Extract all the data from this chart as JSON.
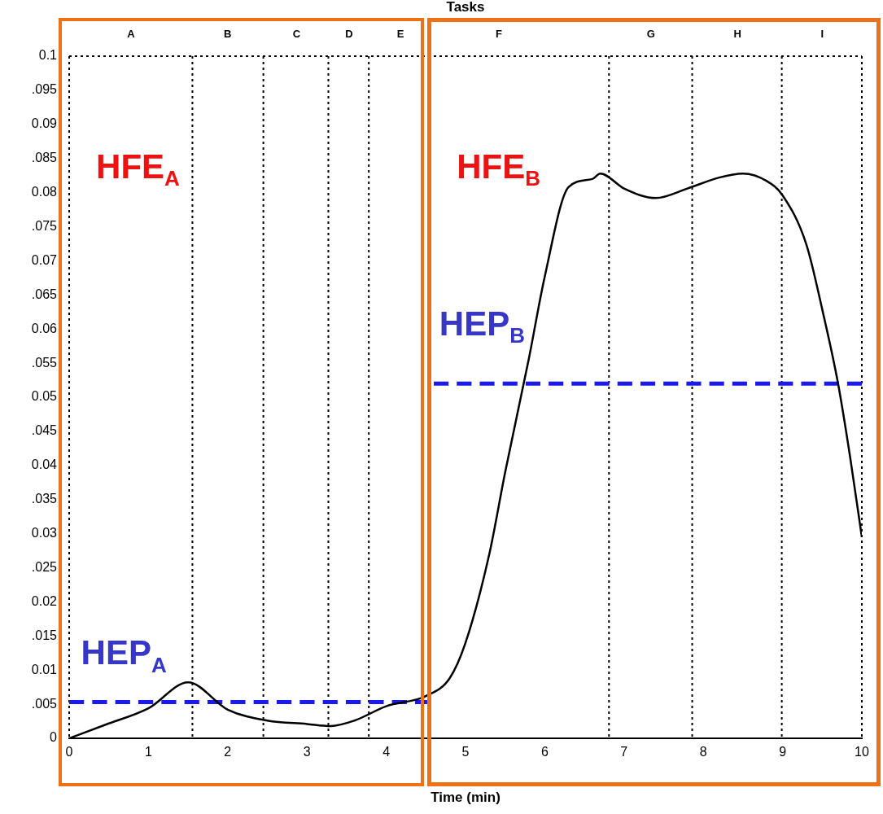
{
  "chart_data": {
    "type": "line",
    "xlabel": "Time (min)",
    "x2label": "Tasks",
    "xlim": [
      0,
      10
    ],
    "xticks": [
      0,
      1,
      2,
      3,
      4,
      5,
      6,
      7,
      8,
      9,
      10
    ],
    "ylim": [
      0,
      0.1
    ],
    "yticks": [
      0,
      {
        "value": 0.005,
        "label": ".005"
      },
      0.01,
      {
        "value": 0.015,
        "label": ".015"
      },
      0.02,
      {
        "value": 0.025,
        "label": ".025"
      },
      0.03,
      {
        "value": 0.035,
        "label": ".035"
      },
      0.04,
      {
        "value": 0.045,
        "label": ".045"
      },
      0.05,
      {
        "value": 0.055,
        "label": ".055"
      },
      0.06,
      {
        "value": 0.065,
        "label": ".065"
      },
      0.07,
      {
        "value": 0.075,
        "label": ".075"
      },
      0.08,
      {
        "value": 0.085,
        "label": ".085"
      },
      0.09,
      {
        "value": 0.095,
        "label": ".095"
      },
      0.1
    ],
    "grid": false,
    "legend": false,
    "marker": "none",
    "series": [
      {
        "color": "#000000",
        "line_style": "solid",
        "x": [
          0,
          0.46,
          1,
          1.5,
          2,
          2.5,
          3,
          3.3,
          3.6,
          4,
          4.5,
          4.8,
          5,
          5.3,
          5.5,
          5.8,
          6,
          6.3,
          6.6,
          6.7,
          7,
          7.4,
          7.8,
          8.2,
          8.5,
          8.8,
          9,
          9.3,
          9.5,
          9.7,
          9.85,
          10
        ],
        "values": [
          0,
          0.002,
          0.0044,
          0.0082,
          0.0042,
          0.0026,
          0.0021,
          0.0018,
          0.0026,
          0.0047,
          0.0062,
          0.0088,
          0.014,
          0.027,
          0.039,
          0.0557,
          0.0677,
          0.0808,
          0.082,
          0.0828,
          0.0806,
          0.0792,
          0.0806,
          0.0822,
          0.0828,
          0.0817,
          0.0796,
          0.0724,
          0.0629,
          0.052,
          0.0414,
          0.0295
        ]
      },
      {
        "color": "#1a1aee",
        "line_style": "dashed",
        "x": [
          0,
          4.55
        ],
        "values": [
          0.0053,
          0.0053
        ]
      },
      {
        "color": "#1a1aee",
        "line_style": "dashed",
        "x": [
          4.6,
          10
        ],
        "values": [
          0.052,
          0.052
        ]
      }
    ],
    "ref_lines": [
      {
        "axis": "x",
        "value": 0,
        "line_style": "dotted",
        "color": "#000000"
      },
      {
        "axis": "x",
        "value": 1.555,
        "line_style": "dotted",
        "color": "#000000"
      },
      {
        "axis": "x",
        "value": 2.45,
        "line_style": "dotted",
        "color": "#000000"
      },
      {
        "axis": "x",
        "value": 3.27,
        "line_style": "dotted",
        "color": "#000000"
      },
      {
        "axis": "x",
        "value": 3.78,
        "line_style": "dotted",
        "color": "#000000"
      },
      {
        "axis": "x",
        "value": 6.81,
        "line_style": "dotted",
        "color": "#000000"
      },
      {
        "axis": "x",
        "value": 7.86,
        "line_style": "dotted",
        "color": "#000000"
      },
      {
        "axis": "x",
        "value": 8.99,
        "line_style": "dotted",
        "color": "#000000"
      },
      {
        "axis": "x",
        "value": 10,
        "line_style": "dotted",
        "color": "#000000"
      },
      {
        "axis": "y",
        "value": 0.1,
        "line_style": "dotted",
        "color": "#000000"
      }
    ],
    "annotations": [
      "HFE$_{A}$",
      "HEP$_{A}$",
      "HFE$_{B}$",
      "HEP$_{B}$",
      "A",
      "B",
      "C",
      "D",
      "E",
      "F",
      "G",
      "H",
      "I"
    ]
  }
}
